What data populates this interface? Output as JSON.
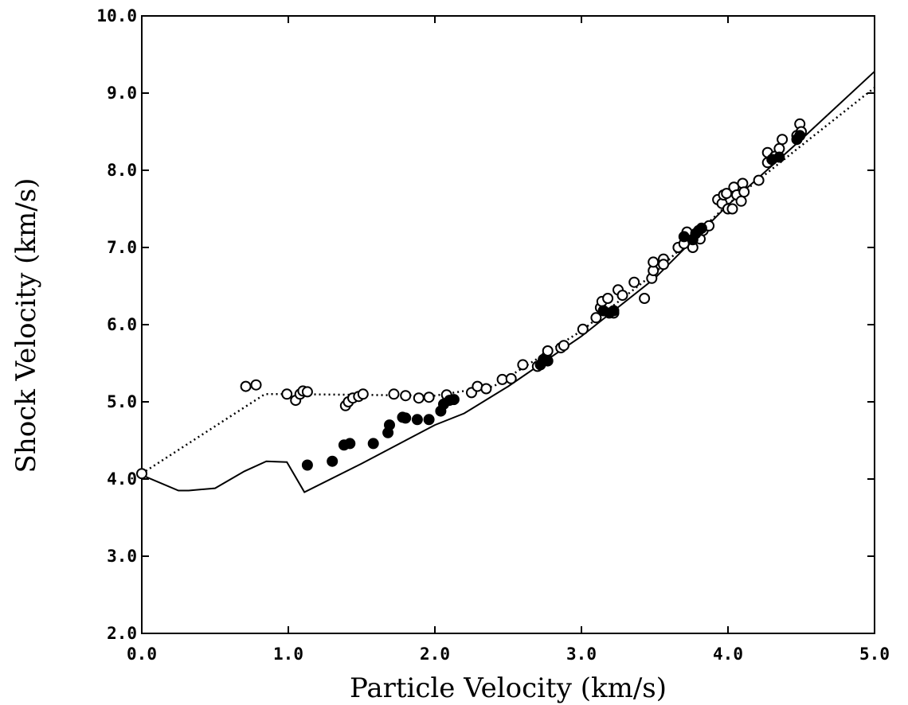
{
  "chart_data": {
    "type": "scatter",
    "title": "",
    "xlabel": "Particle Velocity (km/s)",
    "ylabel": "Shock Velocity (km/s)",
    "xlim": [
      0.0,
      5.0
    ],
    "ylim": [
      2.0,
      10.0
    ],
    "grid": false,
    "legend": "none",
    "x_ticks": [
      "0.0",
      "1.0",
      "2.0",
      "3.0",
      "4.0",
      "5.0"
    ],
    "y_ticks": [
      "2.0",
      "3.0",
      "4.0",
      "5.0",
      "6.0",
      "7.0",
      "8.0",
      "9.0",
      "10.0"
    ],
    "series": [
      {
        "style": "open-circle",
        "points": [
          [
            0.0,
            4.07
          ],
          [
            0.71,
            5.2
          ],
          [
            0.78,
            5.22
          ],
          [
            0.99,
            5.1
          ],
          [
            1.05,
            5.02
          ],
          [
            1.08,
            5.1
          ],
          [
            1.1,
            5.14
          ],
          [
            1.13,
            5.13
          ],
          [
            1.39,
            4.95
          ],
          [
            1.41,
            5.0
          ],
          [
            1.44,
            5.05
          ],
          [
            1.48,
            5.07
          ],
          [
            1.51,
            5.1
          ],
          [
            1.72,
            5.1
          ],
          [
            1.8,
            5.08
          ],
          [
            1.89,
            5.05
          ],
          [
            1.96,
            5.06
          ],
          [
            2.08,
            5.09
          ],
          [
            2.25,
            5.12
          ],
          [
            2.29,
            5.2
          ],
          [
            2.35,
            5.17
          ],
          [
            2.46,
            5.29
          ],
          [
            2.52,
            5.3
          ],
          [
            2.6,
            5.48
          ],
          [
            2.7,
            5.46
          ],
          [
            2.76,
            5.58
          ],
          [
            2.77,
            5.66
          ],
          [
            2.86,
            5.7
          ],
          [
            2.88,
            5.73
          ],
          [
            3.01,
            5.94
          ],
          [
            3.1,
            6.09
          ],
          [
            3.13,
            6.22
          ],
          [
            3.14,
            6.3
          ],
          [
            3.18,
            6.34
          ],
          [
            3.22,
            6.15
          ],
          [
            3.25,
            6.45
          ],
          [
            3.28,
            6.38
          ],
          [
            3.36,
            6.55
          ],
          [
            3.43,
            6.34
          ],
          [
            3.48,
            6.6
          ],
          [
            3.49,
            6.7
          ],
          [
            3.49,
            6.81
          ],
          [
            3.56,
            6.85
          ],
          [
            3.56,
            6.78
          ],
          [
            3.66,
            7.0
          ],
          [
            3.7,
            7.05
          ],
          [
            3.72,
            7.2
          ],
          [
            3.76,
            7.0
          ],
          [
            3.81,
            7.11
          ],
          [
            3.83,
            7.22
          ],
          [
            3.87,
            7.28
          ],
          [
            3.93,
            7.62
          ],
          [
            3.96,
            7.57
          ],
          [
            3.97,
            7.68
          ],
          [
            3.99,
            7.7
          ],
          [
            4.0,
            7.5
          ],
          [
            4.03,
            7.5
          ],
          [
            4.04,
            7.78
          ],
          [
            4.06,
            7.68
          ],
          [
            4.09,
            7.6
          ],
          [
            4.1,
            7.83
          ],
          [
            4.11,
            7.72
          ],
          [
            4.21,
            7.87
          ],
          [
            4.27,
            8.1
          ],
          [
            4.27,
            8.23
          ],
          [
            4.32,
            8.18
          ],
          [
            4.35,
            8.28
          ],
          [
            4.37,
            8.4
          ],
          [
            4.47,
            8.45
          ],
          [
            4.49,
            8.6
          ],
          [
            4.5,
            8.5
          ]
        ]
      },
      {
        "style": "filled-circle",
        "points": [
          [
            1.13,
            4.18
          ],
          [
            1.3,
            4.23
          ],
          [
            1.38,
            4.44
          ],
          [
            1.42,
            4.46
          ],
          [
            1.58,
            4.46
          ],
          [
            1.68,
            4.6
          ],
          [
            1.69,
            4.7
          ],
          [
            1.78,
            4.8
          ],
          [
            1.8,
            4.79
          ],
          [
            1.88,
            4.77
          ],
          [
            1.96,
            4.77
          ],
          [
            2.04,
            4.88
          ],
          [
            2.06,
            4.97
          ],
          [
            2.1,
            5.02
          ],
          [
            2.13,
            5.03
          ],
          [
            2.72,
            5.48
          ],
          [
            2.74,
            5.55
          ],
          [
            2.77,
            5.53
          ],
          [
            3.15,
            6.18
          ],
          [
            3.19,
            6.15
          ],
          [
            3.22,
            6.18
          ],
          [
            3.7,
            7.14
          ],
          [
            3.76,
            7.1
          ],
          [
            3.78,
            7.18
          ],
          [
            3.8,
            7.22
          ],
          [
            3.82,
            7.25
          ],
          [
            4.3,
            8.14
          ],
          [
            4.35,
            8.17
          ],
          [
            4.47,
            8.4
          ],
          [
            4.49,
            8.45
          ]
        ]
      },
      {
        "style": "solid-line",
        "points": [
          [
            0.0,
            4.05
          ],
          [
            0.25,
            3.85
          ],
          [
            0.32,
            3.85
          ],
          [
            0.5,
            3.88
          ],
          [
            0.7,
            4.1
          ],
          [
            0.85,
            4.23
          ],
          [
            0.99,
            4.22
          ],
          [
            1.11,
            3.83
          ],
          [
            1.5,
            4.2
          ],
          [
            2.0,
            4.7
          ],
          [
            2.2,
            4.85
          ],
          [
            2.5,
            5.2
          ],
          [
            3.0,
            5.85
          ],
          [
            3.5,
            6.6
          ],
          [
            4.0,
            7.55
          ],
          [
            4.5,
            8.4
          ],
          [
            5.0,
            9.28
          ]
        ]
      },
      {
        "style": "dotted-line",
        "points": [
          [
            0.0,
            4.07
          ],
          [
            0.84,
            5.1
          ],
          [
            1.0,
            5.1
          ],
          [
            2.0,
            5.08
          ],
          [
            2.4,
            5.2
          ],
          [
            3.0,
            5.92
          ],
          [
            3.5,
            6.67
          ],
          [
            4.0,
            7.56
          ],
          [
            4.5,
            8.32
          ],
          [
            5.0,
            9.07
          ]
        ]
      }
    ]
  }
}
